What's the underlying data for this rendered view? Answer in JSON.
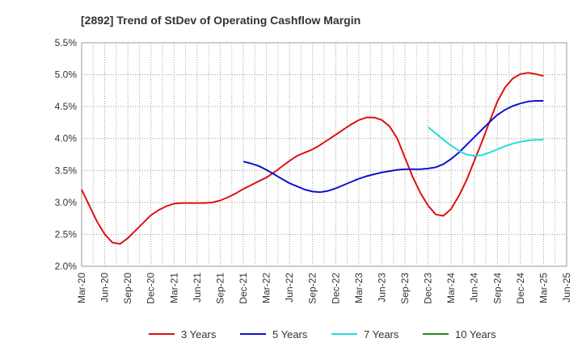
{
  "chart_data": {
    "type": "line",
    "title": "[2892]  Trend of StDev of Operating Cashflow Margin",
    "xlabel": "",
    "ylabel": "",
    "x_ticks": [
      "Mar-20",
      "Jun-20",
      "Sep-20",
      "Dec-20",
      "Mar-21",
      "Jun-21",
      "Sep-21",
      "Dec-21",
      "Mar-22",
      "Jun-22",
      "Sep-22",
      "Dec-22",
      "Mar-23",
      "Jun-23",
      "Sep-23",
      "Dec-23",
      "Mar-24",
      "Jun-24",
      "Sep-24",
      "Dec-24",
      "Mar-25",
      "Jun-25"
    ],
    "y_ticks": [
      "2.0%",
      "2.5%",
      "3.0%",
      "3.5%",
      "4.0%",
      "4.5%",
      "5.0%",
      "5.5%"
    ],
    "ylim": [
      2.0,
      5.5
    ],
    "grid": true,
    "legend_position": "bottom",
    "series": [
      {
        "name": "3 Years",
        "color": "#dd1111",
        "x": [
          "Mar-20",
          "Apr-20",
          "May-20",
          "Jun-20",
          "Jul-20",
          "Aug-20",
          "Sep-20",
          "Oct-20",
          "Nov-20",
          "Dec-20",
          "Jan-21",
          "Feb-21",
          "Mar-21",
          "Apr-21",
          "May-21",
          "Jun-21",
          "Jul-21",
          "Aug-21",
          "Sep-21",
          "Oct-21",
          "Nov-21",
          "Dec-21",
          "Jan-22",
          "Feb-22",
          "Mar-22",
          "Apr-22",
          "May-22",
          "Jun-22",
          "Jul-22",
          "Aug-22",
          "Sep-22",
          "Oct-22",
          "Nov-22",
          "Dec-22",
          "Jan-23",
          "Feb-23",
          "Mar-23",
          "Apr-23",
          "May-23",
          "Jun-23",
          "Jul-23",
          "Aug-23",
          "Sep-23",
          "Oct-23",
          "Nov-23",
          "Dec-23",
          "Jan-24",
          "Feb-24",
          "Mar-24",
          "Apr-24",
          "May-24",
          "Jun-24",
          "Jul-24",
          "Aug-24",
          "Sep-24",
          "Oct-24",
          "Nov-24",
          "Dec-24",
          "Jan-25",
          "Feb-25",
          "Mar-25"
        ],
        "values": [
          3.2,
          2.95,
          2.7,
          2.5,
          2.37,
          2.35,
          2.44,
          2.56,
          2.68,
          2.8,
          2.88,
          2.94,
          2.98,
          2.99,
          2.99,
          2.99,
          2.99,
          3.0,
          3.03,
          3.08,
          3.14,
          3.21,
          3.27,
          3.33,
          3.39,
          3.47,
          3.56,
          3.65,
          3.73,
          3.78,
          3.83,
          3.9,
          3.98,
          4.06,
          4.14,
          4.22,
          4.29,
          4.33,
          4.33,
          4.29,
          4.19,
          4.0,
          3.7,
          3.4,
          3.15,
          2.95,
          2.81,
          2.79,
          2.9,
          3.1,
          3.35,
          3.65,
          3.95,
          4.27,
          4.58,
          4.8,
          4.94,
          5.01,
          5.03,
          5.01,
          4.98
        ]
      },
      {
        "name": "5 Years",
        "color": "#1111cc",
        "x": [
          "Dec-21",
          "Jan-22",
          "Feb-22",
          "Mar-22",
          "Apr-22",
          "May-22",
          "Jun-22",
          "Jul-22",
          "Aug-22",
          "Sep-22",
          "Oct-22",
          "Nov-22",
          "Dec-22",
          "Jan-23",
          "Feb-23",
          "Mar-23",
          "Apr-23",
          "May-23",
          "Jun-23",
          "Jul-23",
          "Aug-23",
          "Sep-23",
          "Oct-23",
          "Nov-23",
          "Dec-23",
          "Jan-24",
          "Feb-24",
          "Mar-24",
          "Apr-24",
          "May-24",
          "Jun-24",
          "Jul-24",
          "Aug-24",
          "Sep-24",
          "Oct-24",
          "Nov-24",
          "Dec-24",
          "Jan-25",
          "Feb-25",
          "Mar-25"
        ],
        "values": [
          3.64,
          3.61,
          3.57,
          3.51,
          3.44,
          3.37,
          3.3,
          3.25,
          3.2,
          3.17,
          3.16,
          3.18,
          3.22,
          3.27,
          3.32,
          3.37,
          3.41,
          3.44,
          3.47,
          3.49,
          3.51,
          3.52,
          3.52,
          3.52,
          3.53,
          3.55,
          3.6,
          3.68,
          3.78,
          3.9,
          4.02,
          4.14,
          4.26,
          4.37,
          4.45,
          4.51,
          4.55,
          4.58,
          4.59,
          4.59
        ]
      },
      {
        "name": "7 Years",
        "color": "#22dddd",
        "x": [
          "Dec-23",
          "Jan-24",
          "Feb-24",
          "Mar-24",
          "Apr-24",
          "May-24",
          "Jun-24",
          "Jul-24",
          "Aug-24",
          "Sep-24",
          "Oct-24",
          "Nov-24",
          "Dec-24",
          "Jan-25",
          "Feb-25",
          "Mar-25"
        ],
        "values": [
          4.18,
          4.08,
          3.98,
          3.89,
          3.81,
          3.75,
          3.73,
          3.74,
          3.78,
          3.83,
          3.88,
          3.92,
          3.95,
          3.97,
          3.98,
          3.98
        ]
      },
      {
        "name": "10 Years",
        "color": "#228822",
        "x": [],
        "values": []
      }
    ]
  }
}
